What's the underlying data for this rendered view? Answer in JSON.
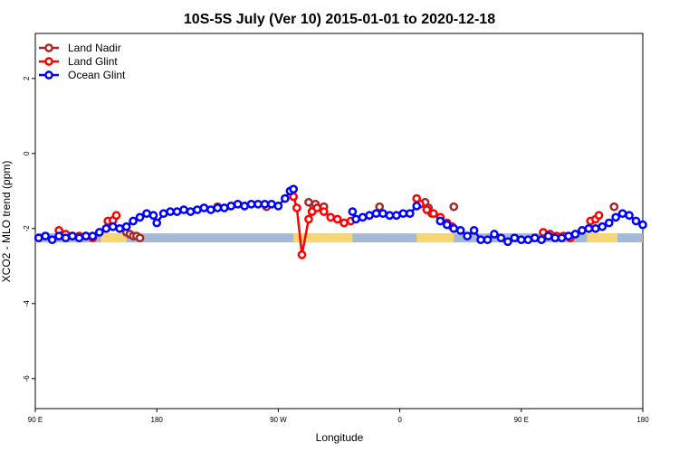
{
  "chart_data": {
    "type": "line",
    "title": "10S-5S July (Ver 10)   2015-01-01 to 2020-12-18",
    "xlabel": "Longitude",
    "ylabel": "XCO2 - MLO trend (ppm)",
    "xlim": [
      0,
      360
    ],
    "ylim": [
      -6.8,
      3.2
    ],
    "x_ticks": [
      {
        "value": 0,
        "label": "90 E"
      },
      {
        "value": 72,
        "label": "180"
      },
      {
        "value": 144,
        "label": "90 W"
      },
      {
        "value": 216,
        "label": "0"
      },
      {
        "value": 288,
        "label": "90 E"
      },
      {
        "value": 360,
        "label": "180"
      }
    ],
    "y_ticks": [
      {
        "value": 2,
        "label": "2"
      },
      {
        "value": 0,
        "label": "0"
      },
      {
        "value": -2,
        "label": "-2"
      },
      {
        "value": -4,
        "label": "-4"
      },
      {
        "value": -6,
        "label": "-6"
      }
    ],
    "grid": false,
    "legend_position": "top-left",
    "colors": {
      "land_nadir": "#a52a2a",
      "land_glint": "#ff0000",
      "ocean_glint": "#0000ff",
      "ocean_band": "#a5b9d6",
      "land_band": "#f7d774"
    },
    "surface_band": {
      "y": -2.25,
      "land_segments": [
        [
          39,
          54
        ],
        [
          153,
          188
        ],
        [
          226,
          248
        ],
        [
          327,
          345
        ]
      ]
    },
    "series": [
      {
        "name": "Land Nadir",
        "key": "land_nadir",
        "segments": [
          [
            [
              54,
              -2.1
            ],
            [
              56,
              -2.15
            ],
            [
              58,
              -2.2
            ],
            [
              60,
              -2.2
            ],
            [
              62,
              -2.25
            ]
          ],
          [
            [
              162,
              -1.3
            ],
            [
              164,
              -1.55
            ],
            [
              166,
              -1.35
            ]
          ],
          [
            [
              231,
              -1.3
            ],
            [
              233,
              -1.45
            ],
            [
              235,
              -1.6
            ]
          ]
        ],
        "points": [
          [
            108,
            -1.42
          ],
          [
            137,
            -1.42
          ],
          [
            171,
            -1.42
          ],
          [
            204,
            -1.42
          ],
          [
            248,
            -1.42
          ],
          [
            343,
            -1.42
          ]
        ]
      },
      {
        "name": "Land Glint",
        "key": "land_glint",
        "segments": [
          [
            [
              14,
              -2.05
            ],
            [
              18,
              -2.15
            ],
            [
              22,
              -2.2
            ],
            [
              26,
              -2.2
            ],
            [
              30,
              -2.2
            ],
            [
              34,
              -2.25
            ]
          ],
          [
            [
              43,
              -1.8
            ],
            [
              46,
              -1.78
            ],
            [
              48,
              -1.65
            ]
          ],
          [
            [
              153,
              -1.15
            ],
            [
              155,
              -1.45
            ],
            [
              158,
              -2.7
            ],
            [
              162,
              -1.75
            ],
            [
              164,
              -1.55
            ],
            [
              167,
              -1.45
            ],
            [
              171,
              -1.55
            ],
            [
              175,
              -1.7
            ],
            [
              179,
              -1.75
            ],
            [
              183,
              -1.85
            ],
            [
              187,
              -1.8
            ]
          ],
          [
            [
              226,
              -1.2
            ],
            [
              228,
              -1.35
            ],
            [
              232,
              -1.5
            ],
            [
              236,
              -1.6
            ],
            [
              240,
              -1.7
            ],
            [
              244,
              -1.85
            ],
            [
              247,
              -1.95
            ]
          ],
          [
            [
              301,
              -2.1
            ],
            [
              305,
              -2.15
            ],
            [
              309,
              -2.2
            ],
            [
              313,
              -2.2
            ],
            [
              317,
              -2.25
            ]
          ],
          [
            [
              329,
              -1.8
            ],
            [
              332,
              -1.75
            ],
            [
              334,
              -1.65
            ]
          ]
        ],
        "points": []
      },
      {
        "name": "Ocean Glint",
        "key": "ocean_glint",
        "segments": [
          [
            [
              2,
              -2.25
            ],
            [
              6,
              -2.2
            ],
            [
              10,
              -2.3
            ],
            [
              14,
              -2.2
            ],
            [
              18,
              -2.25
            ],
            [
              22,
              -2.2
            ],
            [
              26,
              -2.25
            ],
            [
              30,
              -2.2
            ],
            [
              34,
              -2.2
            ],
            [
              38,
              -2.1
            ],
            [
              42,
              -2.0
            ],
            [
              46,
              -1.95
            ],
            [
              50,
              -2.0
            ],
            [
              54,
              -1.95
            ],
            [
              58,
              -1.8
            ],
            [
              62,
              -1.7
            ],
            [
              66,
              -1.6
            ],
            [
              70,
              -1.65
            ],
            [
              72,
              -1.85
            ],
            [
              76,
              -1.6
            ],
            [
              80,
              -1.55
            ],
            [
              84,
              -1.55
            ],
            [
              88,
              -1.5
            ],
            [
              92,
              -1.55
            ],
            [
              96,
              -1.5
            ],
            [
              100,
              -1.45
            ],
            [
              104,
              -1.5
            ],
            [
              108,
              -1.45
            ],
            [
              112,
              -1.45
            ],
            [
              116,
              -1.4
            ],
            [
              120,
              -1.35
            ],
            [
              124,
              -1.4
            ],
            [
              128,
              -1.35
            ],
            [
              132,
              -1.35
            ],
            [
              136,
              -1.35
            ],
            [
              140,
              -1.35
            ],
            [
              144,
              -1.4
            ],
            [
              148,
              -1.2
            ],
            [
              151,
              -1.0
            ],
            [
              153,
              -0.95
            ]
          ],
          [
            [
              188,
              -1.55
            ],
            [
              190,
              -1.75
            ],
            [
              194,
              -1.7
            ],
            [
              198,
              -1.65
            ],
            [
              202,
              -1.6
            ],
            [
              206,
              -1.6
            ],
            [
              210,
              -1.65
            ],
            [
              214,
              -1.65
            ],
            [
              218,
              -1.6
            ],
            [
              222,
              -1.6
            ],
            [
              226,
              -1.4
            ]
          ],
          [
            [
              240,
              -1.8
            ],
            [
              244,
              -1.9
            ],
            [
              248,
              -2.0
            ],
            [
              252,
              -2.05
            ],
            [
              256,
              -2.2
            ],
            [
              260,
              -2.05
            ],
            [
              264,
              -2.3
            ],
            [
              268,
              -2.3
            ],
            [
              272,
              -2.15
            ],
            [
              276,
              -2.25
            ],
            [
              280,
              -2.35
            ],
            [
              284,
              -2.25
            ],
            [
              288,
              -2.3
            ],
            [
              292,
              -2.3
            ],
            [
              296,
              -2.25
            ],
            [
              300,
              -2.3
            ],
            [
              304,
              -2.2
            ],
            [
              308,
              -2.25
            ],
            [
              312,
              -2.25
            ],
            [
              316,
              -2.2
            ],
            [
              320,
              -2.15
            ],
            [
              324,
              -2.05
            ],
            [
              328,
              -2.0
            ],
            [
              332,
              -2.0
            ],
            [
              336,
              -1.95
            ],
            [
              340,
              -1.85
            ],
            [
              344,
              -1.7
            ],
            [
              348,
              -1.6
            ],
            [
              352,
              -1.65
            ],
            [
              356,
              -1.8
            ],
            [
              360,
              -1.9
            ]
          ]
        ],
        "points": []
      }
    ]
  }
}
